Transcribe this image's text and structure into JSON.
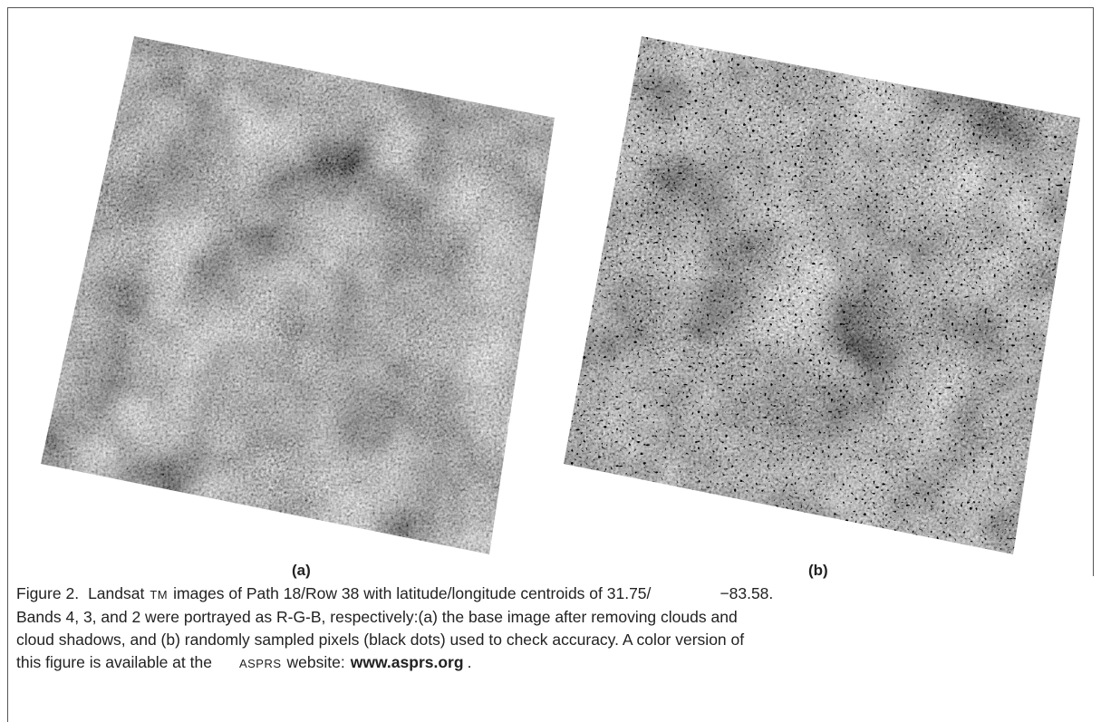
{
  "figure": {
    "panels": [
      {
        "label": "(a)"
      },
      {
        "label": "(b)"
      }
    ],
    "caption": {
      "lines": [
        [
          "Figure 2.",
          "Landsat",
          "TM",
          "images of Path 18/Row 38 with latitude/longitude centroids of 31.75/",
          "−83.58."
        ],
        [
          "Bands 4, 3, and 2 were portrayed as R-G-B, respectively:(a) the base image after removing clouds and"
        ],
        [
          "cloud shadows, and (b) randomly sampled pixels (black dots) used to check accuracy. A color version of"
        ],
        [
          "this figure is available at the",
          "ASPRS",
          "website:",
          "www.asprs.org",
          "."
        ]
      ]
    }
  }
}
